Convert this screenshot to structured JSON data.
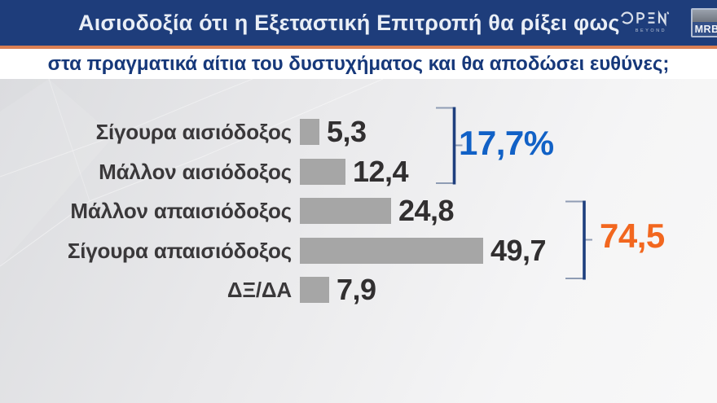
{
  "header": {
    "title": "Αισιοδοξία ότι η Εξεταστική Επιτροπή θα ρίξει φως",
    "open_logo": {
      "word": "OPEN",
      "tagline": "BEYOND"
    },
    "mrb_logo": "MRB"
  },
  "subtitle": "στα πραγματικά αίτια του δυστυχήματος και θα αποδώσει ευθύνες;",
  "chart_data": {
    "type": "bar",
    "orientation": "horizontal",
    "categories": [
      "Σίγουρα αισιόδοξος",
      "Μάλλον αισιόδοξος",
      "Μάλλον απαισιόδοξος",
      "Σίγουρα απαισιόδοξος",
      "ΔΞ/ΔΑ"
    ],
    "values": [
      5.3,
      12.4,
      24.8,
      49.7,
      7.9
    ],
    "value_labels": [
      "5,3",
      "12,4",
      "24,8",
      "49,7",
      "7,9"
    ],
    "unit": "percent",
    "xlim": [
      0,
      55
    ],
    "grid": false,
    "legend": false,
    "bar_color": "#a6a6a6",
    "groups": [
      {
        "label": "17,7%",
        "sum": 17.7,
        "covers": [
          "Σίγουρα αισιόδοξος",
          "Μάλλον αισιόδοξος"
        ],
        "color": "#1161c6"
      },
      {
        "label": "74,5",
        "sum": 74.5,
        "covers": [
          "Μάλλον απαισιόδοξος",
          "Σίγουρα απαισιόδοξος"
        ],
        "color": "#f2671f"
      }
    ]
  },
  "colors": {
    "header_bg": "#1e3d7b",
    "accent_orange": "#dd6a3a",
    "subtitle_blue": "#16387a",
    "bar_gray": "#a6a6a6",
    "value_text": "#312f30",
    "bracket_navy": "#1e3f7e"
  }
}
